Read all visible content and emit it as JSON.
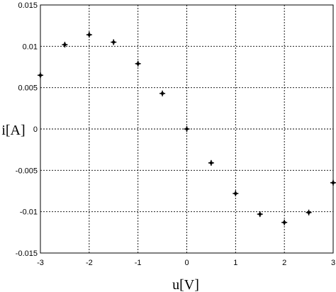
{
  "chart_data": {
    "type": "scatter",
    "title": "",
    "xlabel": "u[V]",
    "ylabel": "i[A]",
    "xlim": [
      -3,
      3
    ],
    "ylim": [
      -0.015,
      0.015
    ],
    "grid": true,
    "x_ticks": [
      "-3",
      "-2",
      "-1",
      "0",
      "1",
      "2",
      "3"
    ],
    "y_ticks": [
      "0.015",
      "0.01",
      "0.005",
      "0",
      "-0.005",
      "-0.01",
      "-0.015"
    ],
    "series": [
      {
        "marker": "star",
        "color": "#000000",
        "x": [
          -3,
          -2.5,
          -2,
          -1.5,
          -1,
          -0.5,
          0,
          0.5,
          1,
          1.5,
          2,
          2.5,
          3
        ],
        "y": [
          0.0065,
          0.0102,
          0.0114,
          0.0105,
          0.0079,
          0.0043,
          0.0,
          -0.0041,
          -0.0078,
          -0.0103,
          -0.0113,
          -0.0101,
          -0.0065
        ]
      }
    ]
  }
}
